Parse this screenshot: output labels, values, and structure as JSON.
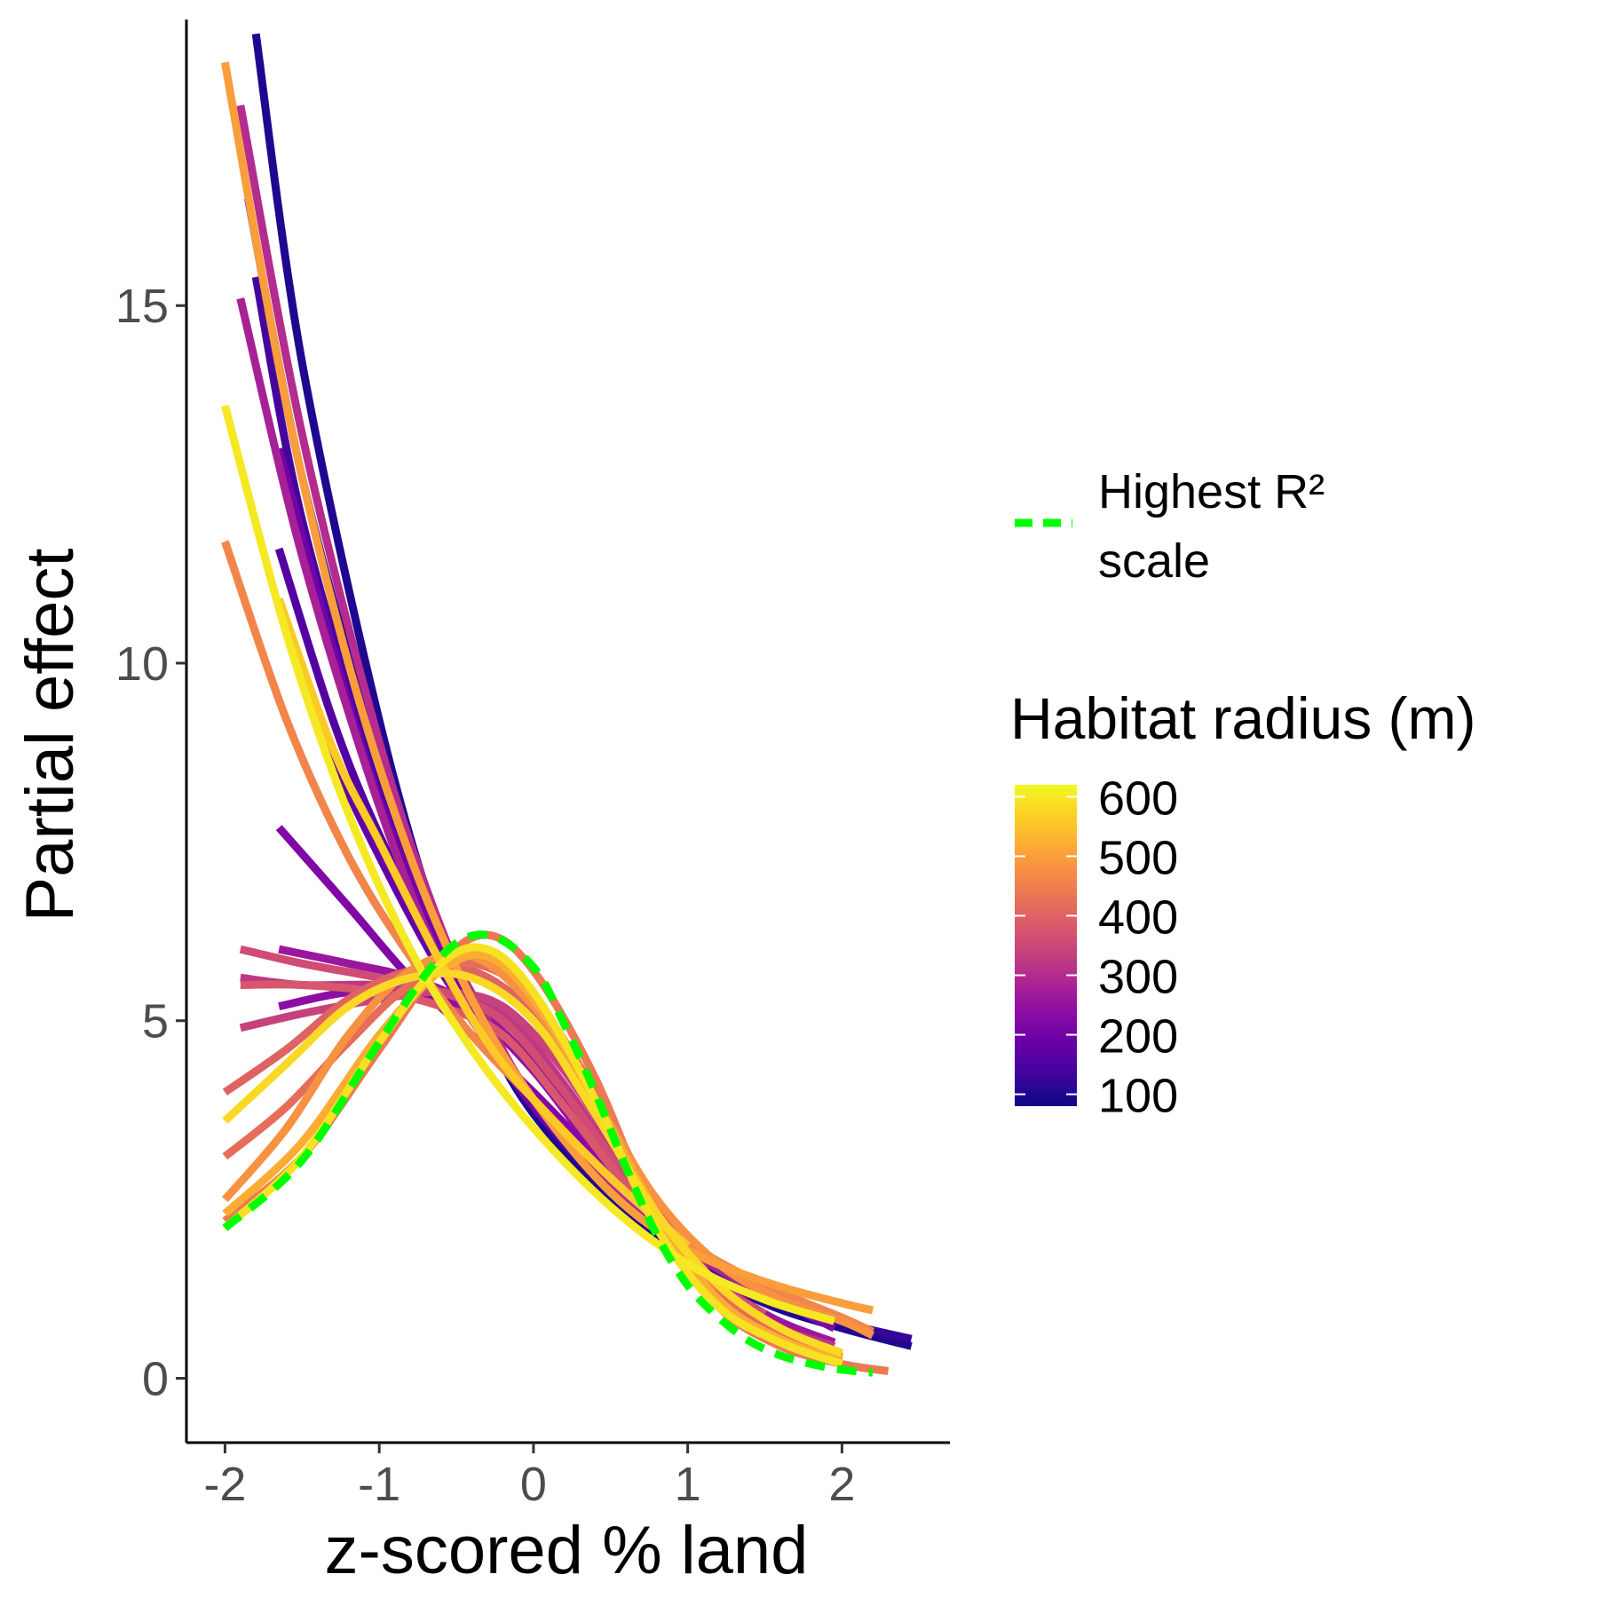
{
  "chart_data": {
    "type": "line",
    "xlabel": "z-scored % land",
    "ylabel": "Partial effect",
    "xlim": [
      -2.25,
      2.7
    ],
    "ylim": [
      -0.9,
      19.0
    ],
    "x_ticks": [
      -2,
      -1,
      0,
      1,
      2
    ],
    "x_tick_labels": [
      "-2",
      "-1",
      "0",
      "1",
      "2"
    ],
    "y_ticks": [
      0,
      5,
      10,
      15
    ],
    "y_tick_labels": [
      "0",
      "5",
      "10",
      "15"
    ],
    "grid": false,
    "legend": {
      "placement": "right",
      "line_label_line1": "Highest R²",
      "line_label_line2": "scale",
      "colorbar_title": "Habitat radius (m)",
      "colorbar_range": [
        80,
        620
      ],
      "colorbar_ticks": [
        100,
        200,
        300,
        400,
        500,
        600
      ],
      "colorbar_tick_labels": [
        "100",
        "200",
        "300",
        "400",
        "500",
        "600"
      ]
    },
    "colors": {
      "highest_r2": "#00ff00",
      "axis": "#000000",
      "tick_text": "#4d4d4d",
      "palette_plasma": [
        "#0d0887",
        "#41049d",
        "#6a00a8",
        "#8f0da4",
        "#b12a90",
        "#cc4778",
        "#e16462",
        "#f2844b",
        "#fca636",
        "#fcce25",
        "#f0f921"
      ]
    },
    "series": [
      {
        "radius": 100,
        "points": [
          [
            -1.8,
            18.8
          ],
          [
            -1.5,
            14.2
          ],
          [
            -1.0,
            9.2
          ],
          [
            -0.6,
            6.2
          ],
          [
            -0.3,
            4.8
          ],
          [
            0.0,
            3.7
          ],
          [
            0.5,
            2.5
          ],
          [
            1.0,
            1.65
          ],
          [
            1.5,
            1.05
          ],
          [
            2.0,
            0.7
          ],
          [
            2.45,
            0.45
          ]
        ]
      },
      {
        "radius": 120,
        "points": [
          [
            -1.85,
            16.5
          ],
          [
            -1.5,
            12.6
          ],
          [
            -1.0,
            8.6
          ],
          [
            -0.6,
            6.0
          ],
          [
            -0.3,
            4.8
          ],
          [
            0.0,
            3.8
          ],
          [
            0.5,
            2.6
          ],
          [
            1.0,
            1.75
          ],
          [
            1.5,
            1.15
          ],
          [
            2.0,
            0.78
          ],
          [
            2.45,
            0.55
          ]
        ]
      },
      {
        "radius": 140,
        "points": [
          [
            -1.8,
            15.4
          ],
          [
            -1.5,
            12.0
          ],
          [
            -1.0,
            8.3
          ],
          [
            -0.6,
            6.1
          ],
          [
            -0.3,
            4.9
          ],
          [
            0.0,
            3.8
          ],
          [
            0.5,
            2.6
          ],
          [
            1.0,
            1.75
          ],
          [
            1.5,
            1.15
          ],
          [
            2.0,
            0.8
          ]
        ]
      },
      {
        "radius": 160,
        "points": [
          [
            -1.65,
            11.6
          ],
          [
            -1.3,
            9.2
          ],
          [
            -1.0,
            7.6
          ],
          [
            -0.6,
            5.9
          ],
          [
            -0.3,
            4.8
          ],
          [
            0.0,
            3.9
          ],
          [
            0.5,
            2.7
          ],
          [
            1.0,
            1.8
          ],
          [
            1.5,
            1.2
          ],
          [
            1.95,
            0.85
          ]
        ]
      },
      {
        "radius": 180,
        "points": [
          [
            -1.65,
            10.8
          ],
          [
            -1.3,
            8.7
          ],
          [
            -1.0,
            7.3
          ],
          [
            -0.6,
            5.7
          ],
          [
            -0.3,
            4.8
          ],
          [
            0.0,
            3.9
          ],
          [
            0.5,
            2.8
          ],
          [
            1.0,
            1.8
          ]
        ]
      },
      {
        "radius": 200,
        "points": [
          [
            -1.65,
            13.0
          ],
          [
            -1.3,
            10.2
          ],
          [
            -1.0,
            8.1
          ],
          [
            -0.6,
            6.0
          ],
          [
            -0.3,
            4.8
          ],
          [
            0.0,
            3.8
          ],
          [
            0.5,
            2.7
          ],
          [
            1.0,
            1.8
          ]
        ]
      },
      {
        "radius": 220,
        "points": [
          [
            -1.65,
            7.7
          ],
          [
            -1.2,
            6.6
          ],
          [
            -0.8,
            5.6
          ],
          [
            -0.4,
            4.8
          ],
          [
            0.0,
            4.0
          ],
          [
            0.5,
            2.9
          ],
          [
            1.0,
            1.9
          ],
          [
            1.5,
            1.2
          ],
          [
            1.95,
            0.7
          ]
        ]
      },
      {
        "radius": 240,
        "points": [
          [
            -1.65,
            5.2
          ],
          [
            -1.2,
            5.4
          ],
          [
            -0.8,
            5.4
          ],
          [
            -0.4,
            5.1
          ],
          [
            0.0,
            4.3
          ],
          [
            0.5,
            2.9
          ],
          [
            1.0,
            1.7
          ],
          [
            1.5,
            0.9
          ],
          [
            1.95,
            0.5
          ]
        ]
      },
      {
        "radius": 260,
        "points": [
          [
            -1.65,
            6.0
          ],
          [
            -1.2,
            5.8
          ],
          [
            -0.8,
            5.6
          ],
          [
            -0.4,
            5.2
          ],
          [
            0.0,
            4.4
          ],
          [
            0.5,
            3.0
          ],
          [
            1.0,
            1.7
          ],
          [
            1.5,
            0.9
          ],
          [
            1.95,
            0.5
          ]
        ]
      },
      {
        "radius": 280,
        "points": [
          [
            -1.9,
            15.1
          ],
          [
            -1.5,
            11.5
          ],
          [
            -1.0,
            8.0
          ],
          [
            -0.6,
            5.8
          ],
          [
            -0.3,
            4.7
          ],
          [
            0.0,
            3.9
          ],
          [
            0.5,
            2.7
          ],
          [
            1.0,
            1.8
          ],
          [
            1.5,
            1.15
          ]
        ]
      },
      {
        "radius": 300,
        "points": [
          [
            -1.9,
            17.8
          ],
          [
            -1.5,
            13.2
          ],
          [
            -1.0,
            8.9
          ],
          [
            -0.6,
            6.3
          ],
          [
            -0.3,
            5.0
          ],
          [
            0.0,
            3.9
          ],
          [
            0.5,
            2.7
          ],
          [
            1.0,
            1.7
          ]
        ]
      },
      {
        "radius": 320,
        "points": [
          [
            -1.9,
            5.6
          ],
          [
            -1.5,
            5.5
          ],
          [
            -1.0,
            5.5
          ],
          [
            -0.6,
            5.4
          ],
          [
            -0.2,
            5.1
          ],
          [
            0.2,
            4.1
          ],
          [
            0.6,
            2.8
          ],
          [
            1.0,
            1.6
          ],
          [
            1.5,
            0.8
          ],
          [
            1.95,
            0.45
          ]
        ]
      },
      {
        "radius": 340,
        "points": [
          [
            -1.9,
            4.9
          ],
          [
            -1.5,
            5.1
          ],
          [
            -1.0,
            5.3
          ],
          [
            -0.6,
            5.4
          ],
          [
            -0.2,
            5.2
          ],
          [
            0.2,
            4.3
          ],
          [
            0.6,
            3.0
          ],
          [
            1.0,
            1.8
          ]
        ]
      },
      {
        "radius": 360,
        "points": [
          [
            -1.9,
            6.0
          ],
          [
            -1.5,
            5.8
          ],
          [
            -1.0,
            5.6
          ],
          [
            -0.6,
            5.4
          ],
          [
            -0.2,
            5.0
          ],
          [
            0.2,
            4.0
          ],
          [
            0.6,
            2.8
          ],
          [
            1.0,
            1.6
          ],
          [
            1.5,
            0.9
          ]
        ]
      },
      {
        "radius": 380,
        "points": [
          [
            -1.9,
            5.5
          ],
          [
            -1.5,
            5.5
          ],
          [
            -1.0,
            5.4
          ],
          [
            -0.6,
            5.2
          ],
          [
            -0.2,
            4.8
          ],
          [
            0.2,
            3.8
          ],
          [
            0.6,
            2.7
          ],
          [
            1.0,
            1.8
          ]
        ]
      },
      {
        "radius": 400,
        "points": [
          [
            -2.0,
            4.0
          ],
          [
            -1.6,
            4.6
          ],
          [
            -1.2,
            5.3
          ],
          [
            -0.8,
            5.7
          ],
          [
            -0.4,
            5.7
          ],
          [
            0.0,
            5.1
          ],
          [
            0.4,
            3.9
          ],
          [
            0.8,
            2.4
          ],
          [
            1.2,
            1.3
          ],
          [
            1.6,
            0.7
          ],
          [
            2.0,
            0.35
          ]
        ]
      },
      {
        "radius": 420,
        "points": [
          [
            -2.0,
            3.1
          ],
          [
            -1.6,
            3.8
          ],
          [
            -1.2,
            4.7
          ],
          [
            -0.8,
            5.5
          ],
          [
            -0.4,
            5.8
          ],
          [
            0.0,
            5.3
          ],
          [
            0.4,
            4.0
          ],
          [
            0.8,
            2.4
          ],
          [
            1.2,
            1.2
          ],
          [
            1.6,
            0.6
          ],
          [
            2.0,
            0.3
          ]
        ]
      },
      {
        "radius": 440,
        "points": [
          [
            -2.0,
            2.2
          ],
          [
            -1.5,
            3.1
          ],
          [
            -1.0,
            4.6
          ],
          [
            -0.6,
            5.8
          ],
          [
            -0.3,
            6.2
          ],
          [
            0.0,
            5.7
          ],
          [
            0.4,
            4.2
          ],
          [
            0.8,
            2.2
          ],
          [
            1.2,
            1.0
          ],
          [
            1.6,
            0.45
          ],
          [
            2.0,
            0.2
          ],
          [
            2.3,
            0.1
          ]
        ]
      },
      {
        "radius": 460,
        "points": [
          [
            -2.0,
            11.7
          ],
          [
            -1.6,
            9.2
          ],
          [
            -1.2,
            7.3
          ],
          [
            -0.8,
            5.9
          ],
          [
            -0.4,
            4.8
          ],
          [
            0.0,
            3.9
          ],
          [
            0.5,
            2.8
          ],
          [
            1.0,
            1.9
          ],
          [
            1.5,
            1.3
          ],
          [
            2.0,
            0.85
          ],
          [
            2.2,
            0.65
          ]
        ]
      },
      {
        "radius": 480,
        "points": [
          [
            -2.0,
            2.5
          ],
          [
            -1.6,
            3.5
          ],
          [
            -1.2,
            4.8
          ],
          [
            -0.8,
            5.7
          ],
          [
            -0.4,
            5.9
          ],
          [
            0.0,
            5.2
          ],
          [
            0.4,
            3.9
          ],
          [
            0.8,
            2.5
          ],
          [
            1.2,
            1.6
          ],
          [
            1.6,
            1.1
          ],
          [
            2.0,
            0.8
          ],
          [
            2.2,
            0.6
          ]
        ]
      },
      {
        "radius": 500,
        "points": [
          [
            -2.0,
            18.4
          ],
          [
            -1.6,
            13.6
          ],
          [
            -1.2,
            10.0
          ],
          [
            -0.8,
            7.3
          ],
          [
            -0.4,
            5.3
          ],
          [
            0.0,
            3.9
          ],
          [
            0.5,
            2.6
          ],
          [
            1.0,
            1.8
          ],
          [
            1.5,
            1.35
          ],
          [
            2.0,
            1.05
          ],
          [
            2.2,
            0.95
          ]
        ]
      },
      {
        "radius": 520,
        "points": [
          [
            -2.0,
            2.3
          ],
          [
            -1.5,
            3.3
          ],
          [
            -1.0,
            4.8
          ],
          [
            -0.6,
            5.7
          ],
          [
            -0.3,
            5.9
          ],
          [
            0.0,
            5.3
          ],
          [
            0.4,
            3.9
          ],
          [
            0.8,
            2.3
          ],
          [
            1.2,
            1.1
          ],
          [
            1.6,
            0.55
          ],
          [
            2.0,
            0.25
          ]
        ]
      },
      {
        "radius": 560,
        "points": [
          [
            -1.65,
            10.9
          ],
          [
            -1.3,
            8.8
          ],
          [
            -1.0,
            7.5
          ],
          [
            -0.6,
            5.8
          ],
          [
            -0.3,
            4.7
          ],
          [
            0.0,
            3.9
          ],
          [
            0.5,
            2.8
          ],
          [
            1.0,
            1.85
          ]
        ]
      },
      {
        "radius": 580,
        "points": [
          [
            -2.0,
            3.6
          ],
          [
            -1.6,
            4.4
          ],
          [
            -1.2,
            5.2
          ],
          [
            -0.8,
            5.6
          ],
          [
            -0.4,
            5.6
          ],
          [
            0.0,
            5.0
          ],
          [
            0.4,
            3.7
          ],
          [
            0.8,
            2.3
          ],
          [
            1.2,
            1.3
          ],
          [
            1.6,
            0.7
          ],
          [
            2.0,
            0.35
          ]
        ]
      },
      {
        "radius": 590,
        "points": [
          [
            -2.0,
            2.1
          ],
          [
            -1.5,
            3.1
          ],
          [
            -1.0,
            4.7
          ],
          [
            -0.6,
            5.8
          ],
          [
            -0.3,
            6.0
          ],
          [
            0.0,
            5.4
          ],
          [
            0.4,
            3.9
          ],
          [
            0.8,
            2.1
          ],
          [
            1.2,
            1.0
          ],
          [
            1.6,
            0.5
          ],
          [
            2.0,
            0.2
          ]
        ]
      },
      {
        "radius": 600,
        "points": [
          [
            -2.0,
            13.6
          ],
          [
            -1.6,
            10.4
          ],
          [
            -1.2,
            7.9
          ],
          [
            -0.8,
            6.0
          ],
          [
            -0.4,
            4.6
          ],
          [
            0.0,
            3.5
          ],
          [
            0.5,
            2.4
          ],
          [
            1.0,
            1.6
          ],
          [
            1.5,
            1.1
          ],
          [
            1.95,
            0.8
          ]
        ]
      }
    ],
    "highest_r2_series": {
      "points": [
        [
          -2.0,
          2.1
        ],
        [
          -1.5,
          3.05
        ],
        [
          -1.0,
          4.7
        ],
        [
          -0.6,
          5.9
        ],
        [
          -0.3,
          6.2
        ],
        [
          0.0,
          5.75
        ],
        [
          0.2,
          4.95
        ],
        [
          0.4,
          4.0
        ],
        [
          0.6,
          2.95
        ],
        [
          0.8,
          2.0
        ],
        [
          1.0,
          1.3
        ],
        [
          1.2,
          0.85
        ],
        [
          1.4,
          0.52
        ],
        [
          1.6,
          0.32
        ],
        [
          1.8,
          0.2
        ],
        [
          2.0,
          0.12
        ],
        [
          2.2,
          0.08
        ]
      ]
    }
  }
}
